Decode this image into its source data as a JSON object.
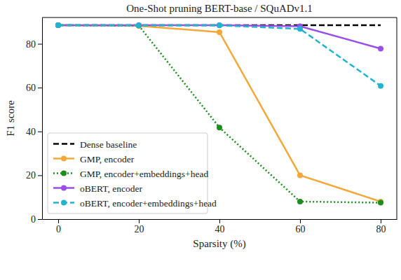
{
  "chart_data": {
    "type": "line",
    "title": "One-Shot pruning BERT-base / SQuADv1.1",
    "x_label": "Sparsity (%)",
    "y_label": "F1 score",
    "x": [
      0,
      20,
      40,
      60,
      80
    ],
    "series": [
      {
        "name": "Dense baseline",
        "color": "#000000",
        "line_style": "dashed",
        "marker": "none",
        "values": [
          88.5,
          88.5,
          88.5,
          88.5,
          88.5
        ]
      },
      {
        "name": "GMP, encoder",
        "color": "#f5a83a",
        "line_style": "solid",
        "marker": "circle",
        "values": [
          88.5,
          88.2,
          85.3,
          20.0,
          8.0
        ]
      },
      {
        "name": "GMP, encoder+embeddings+head",
        "color": "#1e8c1e",
        "line_style": "dotted",
        "marker": "circle",
        "values": [
          88.5,
          88.3,
          41.8,
          8.0,
          7.5
        ]
      },
      {
        "name": "oBERT, encoder",
        "color": "#9a4ee6",
        "line_style": "solid",
        "marker": "circle",
        "values": [
          88.5,
          88.5,
          88.5,
          88.0,
          77.8
        ]
      },
      {
        "name": "oBERT, encoder+embeddings+head",
        "color": "#1fb5cf",
        "line_style": "dashed",
        "marker": "circle",
        "values": [
          88.5,
          88.4,
          88.4,
          86.8,
          60.8
        ]
      }
    ],
    "xlim": [
      -4,
      84
    ],
    "ylim": [
      0,
      92
    ],
    "xticks": [
      0,
      20,
      40,
      60,
      80
    ],
    "yticks": [
      0,
      20,
      40,
      60,
      80
    ],
    "grid": false,
    "legend": "lower left"
  }
}
